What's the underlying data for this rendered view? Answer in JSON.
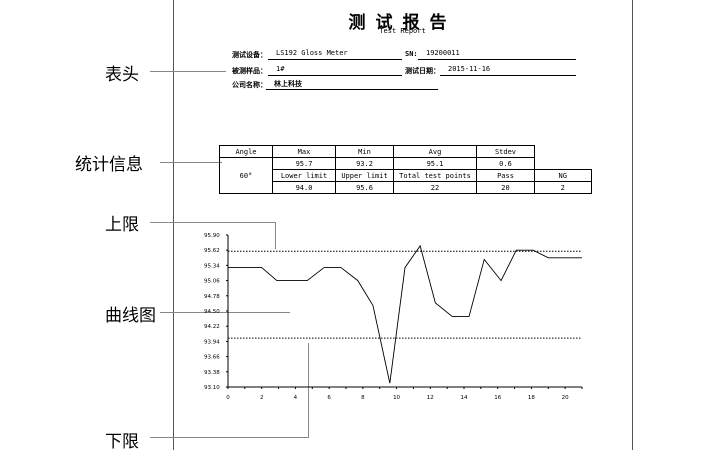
{
  "annotations": {
    "header": "表头",
    "stats": "统计信息",
    "upper": "上限",
    "curve": "曲线图",
    "lower": "下限"
  },
  "report": {
    "title": "测试报告",
    "subtitle": "Test Report",
    "fields": {
      "device_label": "测试设备：",
      "device": "LS192 Gloss Meter",
      "sn_label": "SN:",
      "sn": "19200011",
      "sample_label": "被测样品：",
      "sample": "1#",
      "date_label": "测试日期：",
      "date": "2015-11-16",
      "company_label": "公司名称：",
      "company": "林上科技"
    }
  },
  "stats": {
    "headers1": [
      "Angle",
      "Max",
      "Min",
      "Avg",
      "Stdev"
    ],
    "values1": [
      "95.7",
      "93.2",
      "95.1",
      "0.6"
    ],
    "angle": "60°",
    "headers2": [
      "Lower limit",
      "Upper limit",
      "Total test points",
      "Pass",
      "NG"
    ],
    "values2": [
      "94.0",
      "95.6",
      "22",
      "20",
      "2"
    ]
  },
  "chart_data": {
    "type": "line",
    "yticks": [
      "95.90",
      "95.62",
      "95.34",
      "95.06",
      "94.78",
      "94.50",
      "94.22",
      "93.94",
      "93.66",
      "93.38",
      "93.10"
    ],
    "xticks": [
      "0",
      "2",
      "4",
      "6",
      "8",
      "10",
      "12",
      "14",
      "16",
      "18",
      "20"
    ],
    "xlim": [
      0,
      21
    ],
    "ylim": [
      93.1,
      95.9
    ],
    "upper_limit": 95.6,
    "lower_limit": 94.0,
    "x": [
      0,
      1,
      2,
      2.9,
      3.8,
      4.7,
      5.7,
      6.7,
      7.7,
      8.6,
      9.6,
      10.5,
      11.4,
      12.3,
      13.3,
      14.3,
      15.2,
      16.2,
      17.1,
      18.1,
      19.0,
      21
    ],
    "y": [
      95.3,
      95.3,
      95.3,
      95.06,
      95.06,
      95.06,
      95.3,
      95.3,
      95.06,
      94.6,
      93.17,
      95.3,
      95.7,
      94.65,
      94.4,
      94.4,
      95.45,
      95.06,
      95.62,
      95.62,
      95.48,
      95.48
    ]
  }
}
